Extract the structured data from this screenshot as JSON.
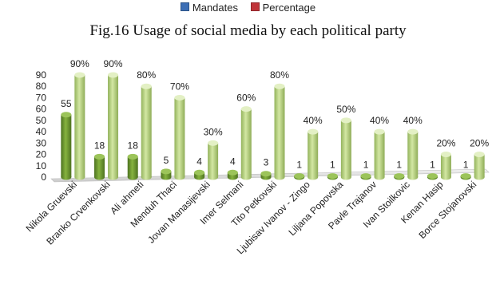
{
  "legend": {
    "items": [
      {
        "label": "Mandates",
        "color": "#3d6fb5"
      },
      {
        "label": "Percentage",
        "color": "#c0353a"
      }
    ]
  },
  "chart_data": {
    "type": "bar",
    "title": "Fig.16 Usage of social media by each political party",
    "categories": [
      "Nikola Gruevski",
      "Branko Crvenkovski",
      "Ali ahmeti",
      "Menduh Thaci",
      "Jovan Manasijevski",
      "Imer Selmani",
      "Tito Petkovski",
      "Ljubisav Ivanov - Zingo",
      "Liljana Popovska",
      "Pavle Trajanov",
      "Ivan Stoilkovic",
      "Kenan Hasip",
      "Borce Stojanovski"
    ],
    "series": [
      {
        "name": "Mandates",
        "values": [
          55,
          18,
          18,
          5,
          4,
          4,
          3,
          1,
          1,
          1,
          1,
          1,
          1
        ],
        "labels": [
          "55",
          "18",
          "18",
          "5",
          "4",
          "4",
          "3",
          "1",
          "1",
          "1",
          "1",
          "1",
          "1"
        ],
        "color": "#6f9a2e"
      },
      {
        "name": "Percentage",
        "values": [
          90,
          90,
          80,
          70,
          30,
          60,
          80,
          40,
          50,
          40,
          40,
          20,
          20
        ],
        "labels": [
          "90%",
          "90%",
          "80%",
          "70%",
          "30%",
          "60%",
          "80%",
          "40%",
          "50%",
          "40%",
          "40%",
          "20%",
          "20%"
        ],
        "color": "#b9d47e"
      }
    ],
    "ylim": [
      0,
      90
    ],
    "yticks": [
      0,
      10,
      20,
      30,
      40,
      50,
      60,
      70,
      80,
      90
    ],
    "style": "3d-cylinder",
    "grid": false,
    "legend_position": "top"
  }
}
